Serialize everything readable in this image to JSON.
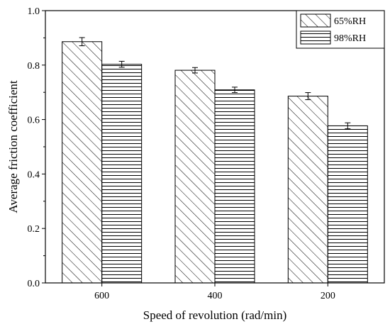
{
  "chart_data": {
    "type": "bar",
    "title": "",
    "xlabel": "Speed of revolution (rad/min)",
    "ylabel": "Average friction coefficient",
    "categories": [
      "600",
      "400",
      "200"
    ],
    "ylim": [
      0,
      1.0
    ],
    "yticks": [
      0.0,
      0.2,
      0.4,
      0.6,
      0.8,
      1.0
    ],
    "ytick_labels": [
      "0.0",
      "0.2",
      "0.4",
      "0.6",
      "0.8",
      "1.0"
    ],
    "grid": false,
    "legend_position": "top-right",
    "series": [
      {
        "name": "65%RH",
        "pattern": "diagonal-hatch",
        "values": [
          0.886,
          0.781,
          0.686
        ],
        "errors": [
          0.015,
          0.01,
          0.013
        ]
      },
      {
        "name": "98%RH",
        "pattern": "horizontal-hatch",
        "values": [
          0.803,
          0.709,
          0.577
        ],
        "errors": [
          0.011,
          0.01,
          0.011
        ]
      }
    ],
    "colors": {
      "bar_fill": "#ffffff",
      "hatch": "#000000",
      "axis": "#000000"
    }
  }
}
